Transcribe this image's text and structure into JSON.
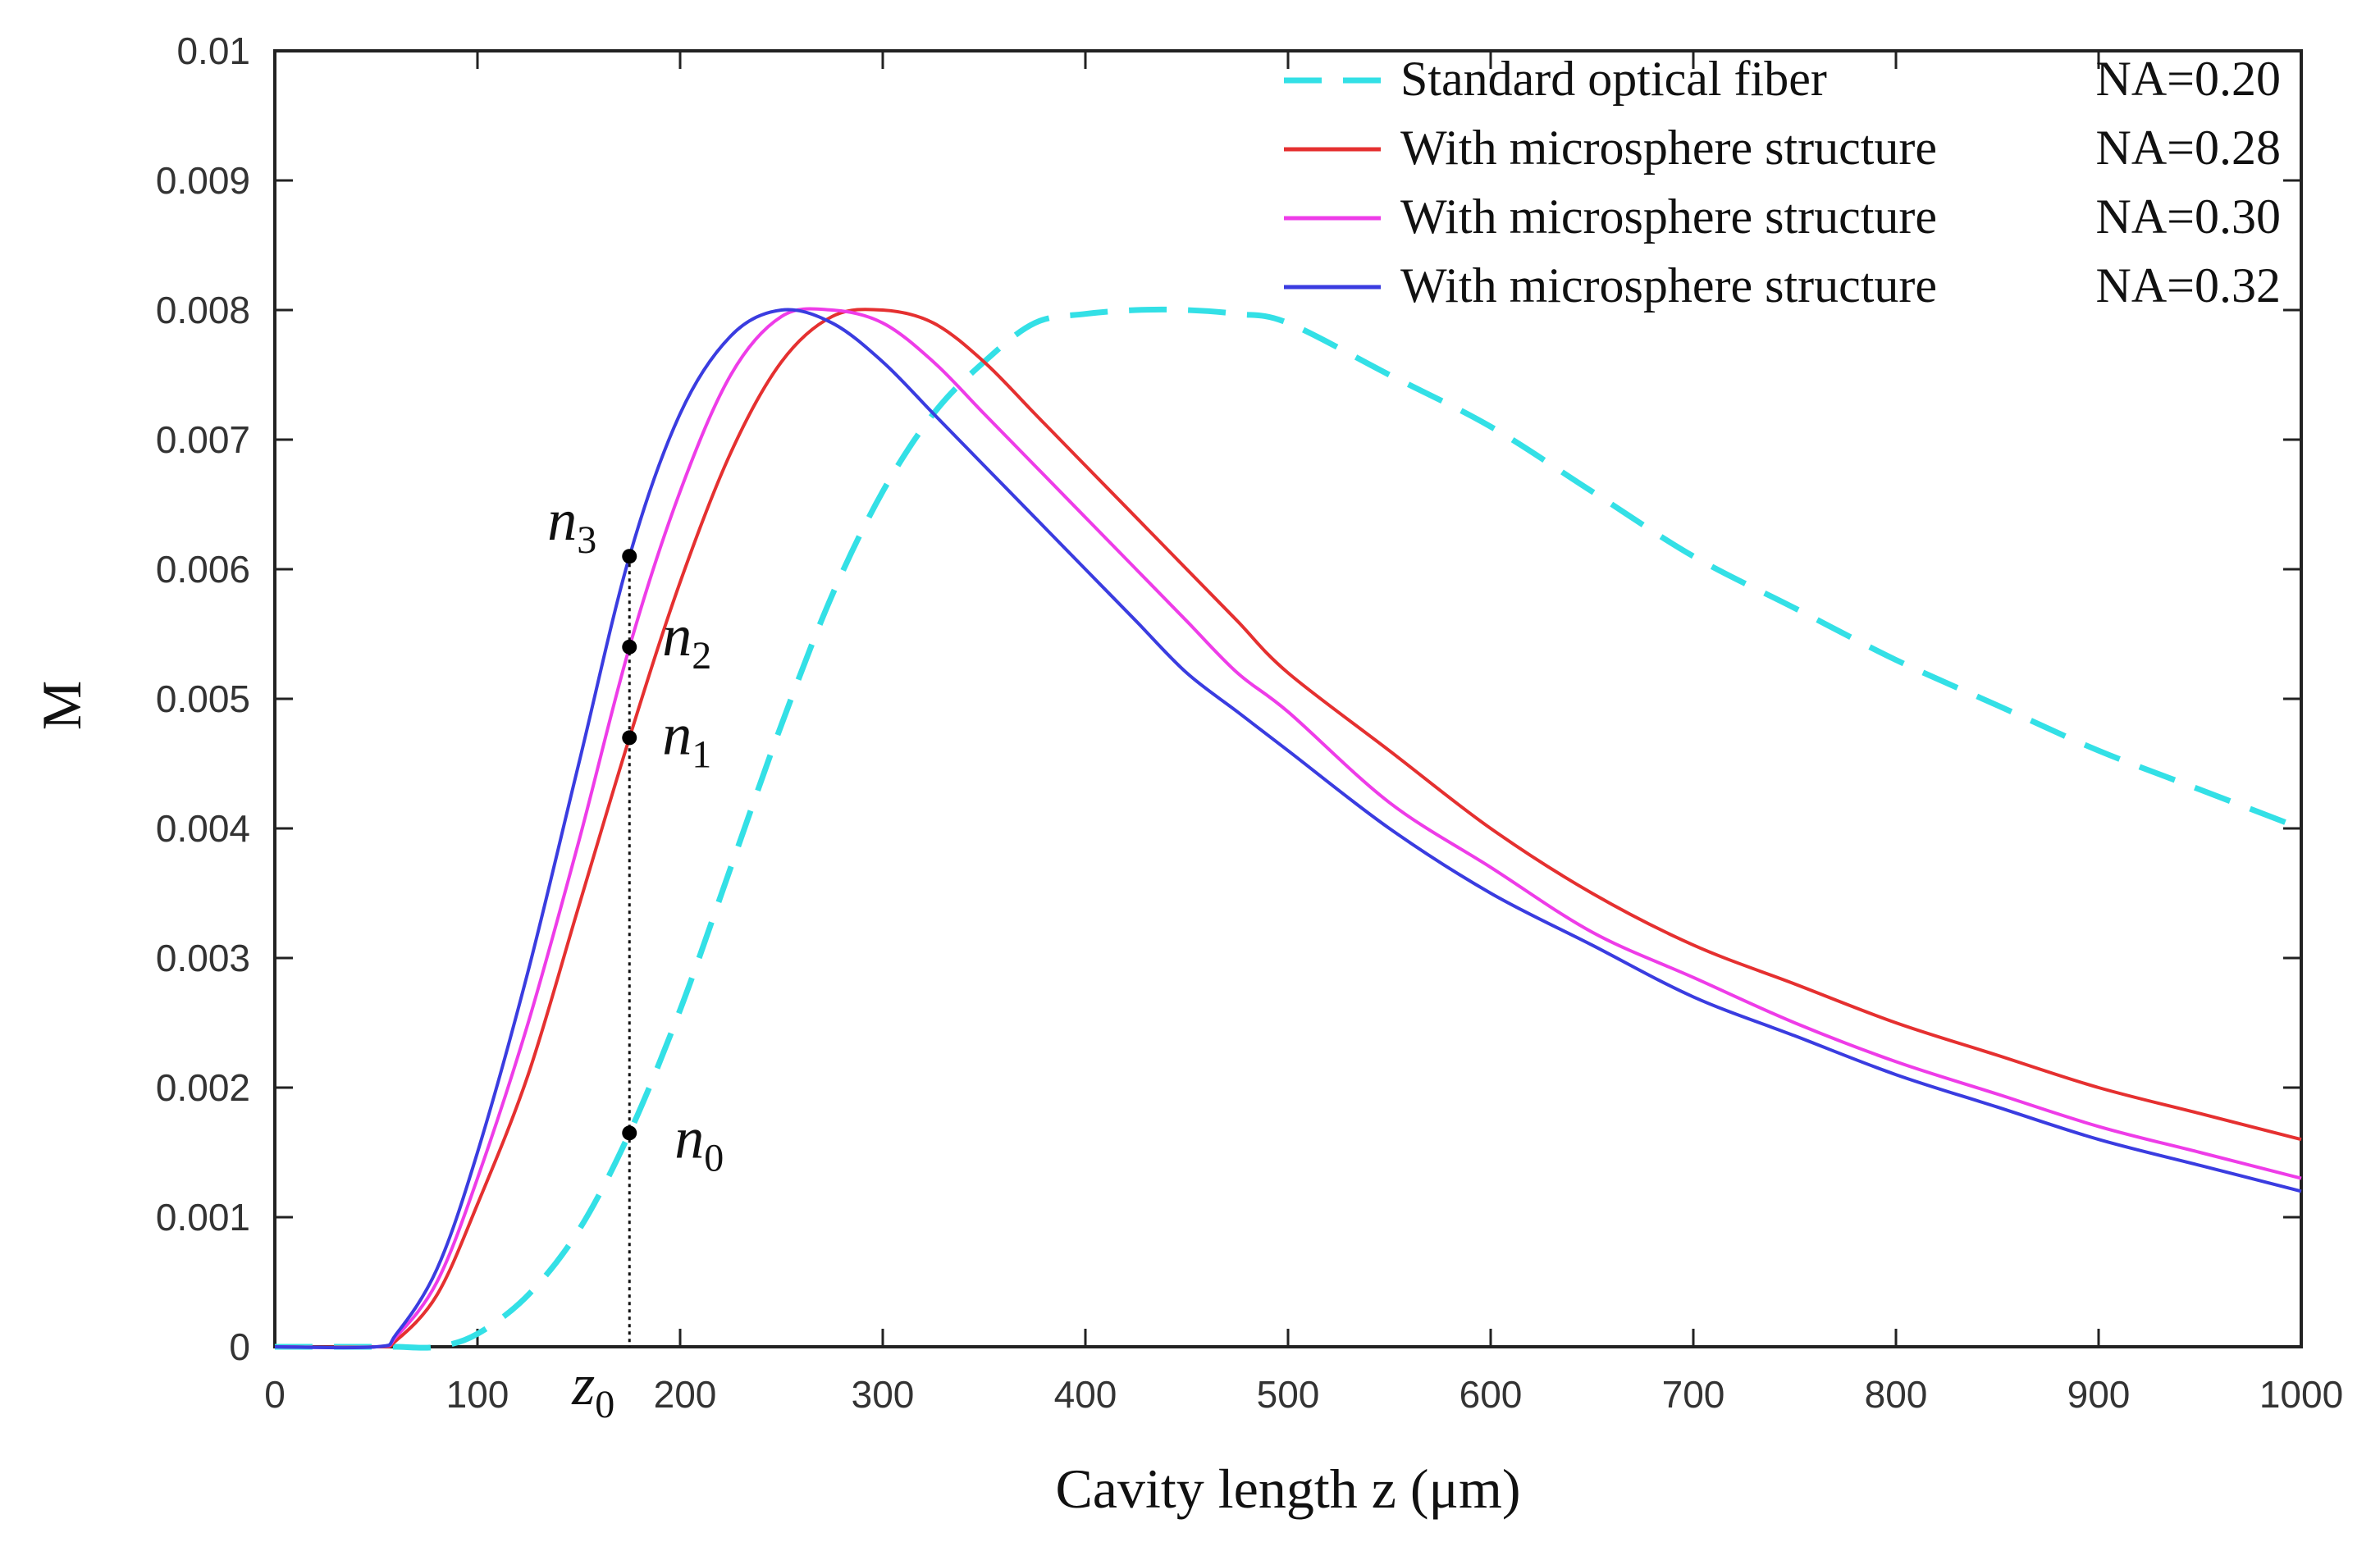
{
  "chart_data": {
    "type": "line",
    "title": "",
    "xlabel": "Cavity length z (μm)",
    "ylabel": "M",
    "xlim": [
      0,
      1000
    ],
    "ylim": [
      0,
      0.01
    ],
    "x_ticks": [
      0,
      100,
      200,
      300,
      400,
      500,
      600,
      700,
      800,
      900,
      1000
    ],
    "x_tick_labels": [
      "0",
      "100",
      "200",
      "300",
      "400",
      "500",
      "600",
      "700",
      "800",
      "900",
      "1000"
    ],
    "y_ticks": [
      0,
      0.001,
      0.002,
      0.003,
      0.004,
      0.005,
      0.006,
      0.007,
      0.008,
      0.009,
      0.01
    ],
    "y_tick_labels": [
      "0",
      "0.001",
      "0.002",
      "0.003",
      "0.004",
      "0.005",
      "0.006",
      "0.007",
      "0.008",
      "0.009",
      "0.01"
    ],
    "grid": false,
    "legend_position": "top-right",
    "x": [
      0,
      50,
      60,
      80,
      100,
      125,
      150,
      175,
      200,
      225,
      250,
      275,
      300,
      325,
      350,
      375,
      400,
      425,
      450,
      475,
      500,
      550,
      600,
      650,
      700,
      750,
      800,
      850,
      900,
      950,
      1000
    ],
    "series": [
      {
        "name": "Standard optical fiber",
        "na_label": "NA=0.20",
        "color": "#33e0e6",
        "dash": true,
        "values": [
          0,
          0,
          0,
          0,
          0.0001,
          0.0004,
          0.0009,
          0.00165,
          0.0026,
          0.0037,
          0.0048,
          0.0058,
          0.0066,
          0.0072,
          0.0076,
          0.0079,
          0.00797,
          0.008,
          0.008,
          0.00797,
          0.0079,
          0.0075,
          0.0071,
          0.0066,
          0.0061,
          0.0057,
          0.0053,
          0.00495,
          0.0046,
          0.0043,
          0.004
        ]
      },
      {
        "name": "With microsphere structure",
        "na_label": "NA=0.28",
        "color": "#e53030",
        "dash": false,
        "values": [
          0,
          0,
          5e-05,
          0.0004,
          0.0011,
          0.0021,
          0.0034,
          0.0047,
          0.0059,
          0.0069,
          0.0076,
          0.00795,
          0.008,
          0.0079,
          0.0076,
          0.0072,
          0.0068,
          0.0064,
          0.006,
          0.0056,
          0.0052,
          0.0046,
          0.004,
          0.0035,
          0.0031,
          0.0028,
          0.0025,
          0.00225,
          0.002,
          0.0018,
          0.0016
        ]
      },
      {
        "name": "With microsphere structure",
        "na_label": "NA=0.30",
        "color": "#ee3ce8",
        "dash": false,
        "values": [
          0,
          0,
          8e-05,
          0.0005,
          0.0013,
          0.0025,
          0.0039,
          0.0054,
          0.0066,
          0.0075,
          0.00795,
          0.008,
          0.0079,
          0.0076,
          0.0072,
          0.0068,
          0.0064,
          0.006,
          0.0056,
          0.0052,
          0.0049,
          0.0042,
          0.0037,
          0.0032,
          0.00285,
          0.0025,
          0.0022,
          0.00195,
          0.0017,
          0.0015,
          0.0013
        ]
      },
      {
        "name": "With microsphere structure",
        "na_label": "NA=0.32",
        "color": "#3a3ce0",
        "dash": false,
        "values": [
          0,
          0,
          0.0001,
          0.0006,
          0.0015,
          0.0029,
          0.0045,
          0.0061,
          0.0072,
          0.0078,
          0.008,
          0.0079,
          0.0076,
          0.0072,
          0.0068,
          0.0064,
          0.006,
          0.0056,
          0.0052,
          0.0049,
          0.0046,
          0.004,
          0.0035,
          0.0031,
          0.0027,
          0.0024,
          0.0021,
          0.00185,
          0.0016,
          0.0014,
          0.0012
        ]
      }
    ],
    "annotations": {
      "z0": {
        "label": "z",
        "sub": "0",
        "x": 175
      },
      "points": [
        {
          "label": "n",
          "sub": "3",
          "x": 175,
          "y": 0.0061
        },
        {
          "label": "n",
          "sub": "2",
          "x": 175,
          "y": 0.0054
        },
        {
          "label": "n",
          "sub": "1",
          "x": 175,
          "y": 0.0047
        },
        {
          "label": "n",
          "sub": "0",
          "x": 175,
          "y": 0.00165
        }
      ]
    }
  }
}
